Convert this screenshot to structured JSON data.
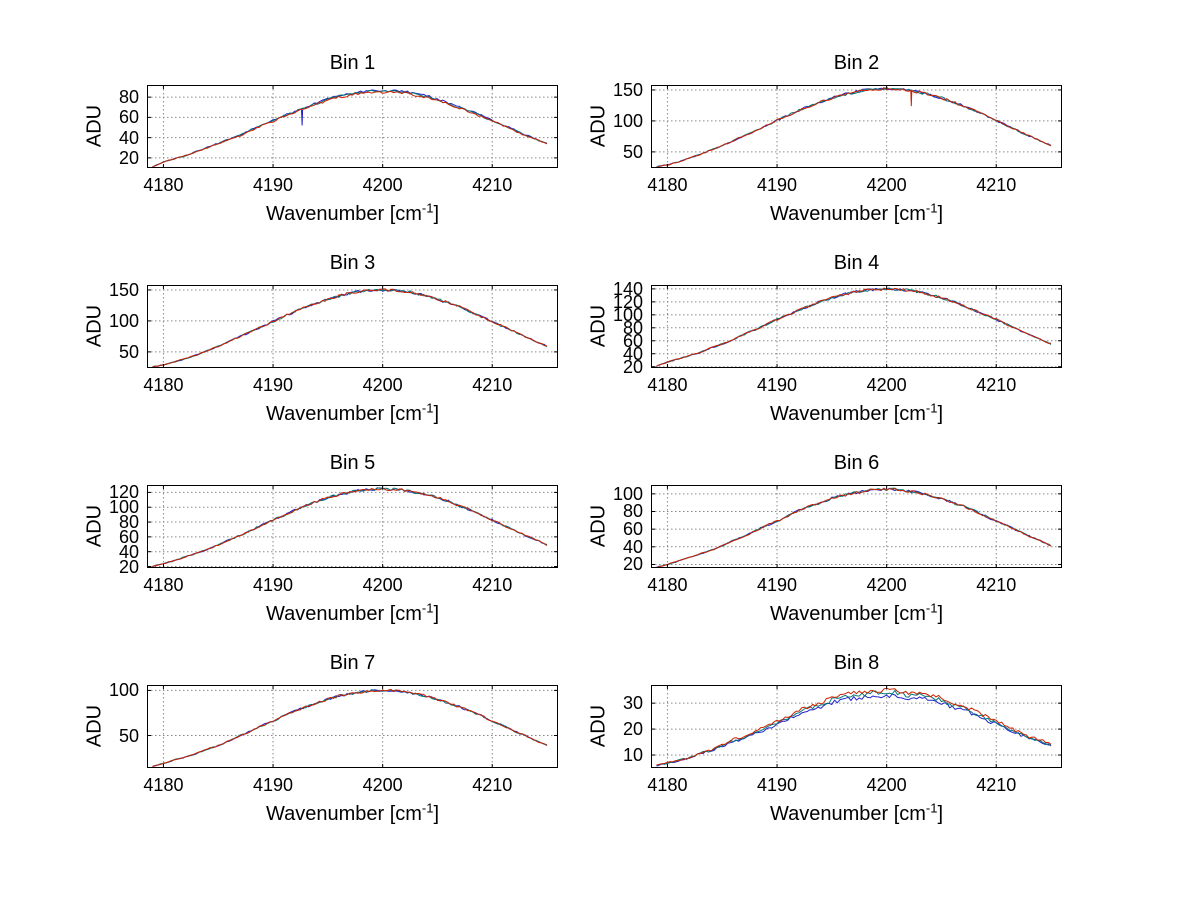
{
  "figure": {
    "background_color": "#ffffff"
  },
  "chart_data": {
    "type": "line",
    "layout": {
      "rows": 4,
      "cols": 2
    },
    "grid": "dotted",
    "legend": "none",
    "ylabel": "ADU",
    "xlabel": {
      "main": "Wavenumber [cm",
      "sup": "-1",
      "end": "]"
    },
    "x_ticks": [
      4180,
      4190,
      4200,
      4210
    ],
    "xlim": [
      4178.5,
      4216
    ],
    "x": [
      4179,
      4180,
      4181,
      4182,
      4183,
      4184,
      4185,
      4186,
      4187,
      4188,
      4189,
      4190,
      4191,
      4192,
      4193,
      4194,
      4195,
      4196,
      4197,
      4198,
      4199,
      4200,
      4201,
      4202,
      4203,
      4204,
      4205,
      4206,
      4207,
      4208,
      4209,
      4210,
      4211,
      4212,
      4213,
      4214,
      4215
    ],
    "subplots": [
      {
        "title": "Bin 1",
        "ylim": [
          10,
          92
        ],
        "y_ticks": [
          20,
          40,
          60,
          80
        ],
        "values": [
          11,
          16,
          19,
          22,
          26,
          30,
          34,
          38,
          42,
          47,
          52,
          56,
          61,
          65,
          69,
          73,
          77,
          80,
          82,
          84,
          85,
          85,
          85,
          84,
          82,
          80,
          77,
          73,
          69,
          65,
          61,
          56,
          52,
          47,
          42,
          38,
          34
        ],
        "noise": 1.2,
        "series": [
          {
            "name": "trace-blue",
            "color": "#2222cc",
            "peak_offset": 1.5
          },
          {
            "name": "trace-teal",
            "color": "#007777",
            "peak_offset": 0.8
          },
          {
            "name": "trace-red",
            "color": "#cc2200",
            "peak_offset": 0
          }
        ],
        "spike": {
          "x": 4192.6,
          "value": 52,
          "color": "#2222cc"
        }
      },
      {
        "title": "Bin 2",
        "ylim": [
          24,
          158
        ],
        "y_ticks": [
          50,
          100,
          150
        ],
        "values": [
          26,
          29,
          34,
          40,
          46,
          53,
          60,
          68,
          76,
          84,
          92,
          101,
          109,
          117,
          124,
          131,
          137,
          142,
          146,
          150,
          151,
          152,
          151,
          150,
          146,
          142,
          137,
          131,
          124,
          117,
          109,
          101,
          92,
          84,
          76,
          68,
          60
        ],
        "noise": 2.2,
        "series": [
          {
            "name": "trace-blue",
            "color": "#2222cc",
            "peak_offset": 0
          },
          {
            "name": "trace-teal",
            "color": "#007777",
            "peak_offset": 0
          },
          {
            "name": "trace-red",
            "color": "#cc2200",
            "peak_offset": 0
          }
        ],
        "spike": {
          "x": 4202.2,
          "value": 124,
          "color": "#cc2200"
        }
      },
      {
        "title": "Bin 3",
        "ylim": [
          24,
          158
        ],
        "y_ticks": [
          50,
          100,
          150
        ],
        "values": [
          26,
          29,
          34,
          39,
          45,
          52,
          59,
          67,
          75,
          83,
          91,
          99,
          107,
          115,
          123,
          129,
          135,
          140,
          145,
          148,
          149,
          150,
          149,
          148,
          145,
          140,
          135,
          129,
          123,
          115,
          107,
          99,
          91,
          83,
          75,
          67,
          59
        ],
        "noise": 2.2,
        "series": [
          {
            "name": "trace-blue",
            "color": "#2222cc",
            "peak_offset": 0
          },
          {
            "name": "trace-teal",
            "color": "#007777",
            "peak_offset": 0
          },
          {
            "name": "trace-red",
            "color": "#cc2200",
            "peak_offset": 0
          }
        ]
      },
      {
        "title": "Bin 4",
        "ylim": [
          18,
          146
        ],
        "y_ticks": [
          20,
          40,
          60,
          80,
          100,
          120,
          140
        ],
        "values": [
          21,
          27,
          32,
          37,
          42,
          49,
          55,
          62,
          70,
          77,
          85,
          93,
          100,
          107,
          114,
          121,
          126,
          131,
          135,
          138,
          139,
          140,
          139,
          138,
          135,
          131,
          126,
          121,
          114,
          107,
          100,
          93,
          85,
          77,
          70,
          62,
          55
        ],
        "noise": 2.0,
        "series": [
          {
            "name": "trace-blue",
            "color": "#2222cc",
            "peak_offset": 0
          },
          {
            "name": "trace-teal",
            "color": "#007777",
            "peak_offset": 0
          },
          {
            "name": "trace-red",
            "color": "#cc2200",
            "peak_offset": 0
          }
        ]
      },
      {
        "title": "Bin 5",
        "ylim": [
          18,
          130
        ],
        "y_ticks": [
          20,
          40,
          60,
          80,
          100,
          120
        ],
        "values": [
          20,
          24,
          28,
          33,
          38,
          43,
          49,
          56,
          62,
          69,
          76,
          83,
          89,
          96,
          102,
          108,
          113,
          117,
          120,
          123,
          124,
          125,
          124,
          123,
          120,
          117,
          113,
          108,
          102,
          96,
          89,
          83,
          76,
          69,
          62,
          56,
          49
        ],
        "noise": 1.8,
        "series": [
          {
            "name": "trace-blue",
            "color": "#2222cc",
            "peak_offset": 0
          },
          {
            "name": "trace-teal",
            "color": "#007777",
            "peak_offset": 0
          },
          {
            "name": "trace-red",
            "color": "#cc2200",
            "peak_offset": 0
          }
        ]
      },
      {
        "title": "Bin 6",
        "ylim": [
          16,
          110
        ],
        "y_ticks": [
          20,
          40,
          60,
          80,
          100
        ],
        "values": [
          17,
          20,
          24,
          28,
          32,
          36,
          41,
          47,
          52,
          58,
          64,
          69,
          75,
          81,
          86,
          90,
          95,
          98,
          101,
          103,
          105,
          105,
          105,
          103,
          101,
          98,
          95,
          90,
          86,
          81,
          75,
          69,
          64,
          58,
          52,
          47,
          41
        ],
        "noise": 1.5,
        "series": [
          {
            "name": "trace-blue",
            "color": "#2222cc",
            "peak_offset": 0
          },
          {
            "name": "trace-teal",
            "color": "#007777",
            "peak_offset": 0
          },
          {
            "name": "trace-red",
            "color": "#cc2200",
            "peak_offset": 0
          }
        ]
      },
      {
        "title": "Bin 7",
        "ylim": [
          14,
          106
        ],
        "y_ticks": [
          50,
          100
        ],
        "values": [
          16,
          19,
          23,
          26,
          30,
          35,
          39,
          44,
          50,
          55,
          61,
          66,
          72,
          77,
          82,
          86,
          90,
          94,
          96,
          98,
          100,
          100,
          100,
          98,
          96,
          94,
          90,
          86,
          82,
          77,
          72,
          66,
          61,
          55,
          50,
          44,
          39
        ],
        "noise": 1.4,
        "series": [
          {
            "name": "trace-blue",
            "color": "#2222cc",
            "peak_offset": 0
          },
          {
            "name": "trace-teal",
            "color": "#007777",
            "peak_offset": 0
          },
          {
            "name": "trace-red",
            "color": "#cc2200",
            "peak_offset": 0
          }
        ]
      },
      {
        "title": "Bin 8",
        "ylim": [
          5,
          37
        ],
        "y_ticks": [
          10,
          20,
          30
        ],
        "values": [
          6,
          7,
          8,
          9,
          11,
          12,
          14,
          16,
          17,
          19,
          21,
          23,
          25,
          27,
          29,
          30,
          32,
          33,
          34,
          34,
          35,
          35,
          35,
          34,
          34,
          33,
          32,
          30,
          29,
          27,
          25,
          23,
          21,
          19,
          17,
          16,
          14
        ],
        "noise": 0.9,
        "series": [
          {
            "name": "trace-blue",
            "color": "#2222cc",
            "peak_offset": -2.0
          },
          {
            "name": "trace-teal",
            "color": "#007777",
            "peak_offset": -1.0
          },
          {
            "name": "trace-red",
            "color": "#cc2200",
            "peak_offset": 0
          }
        ]
      }
    ]
  }
}
